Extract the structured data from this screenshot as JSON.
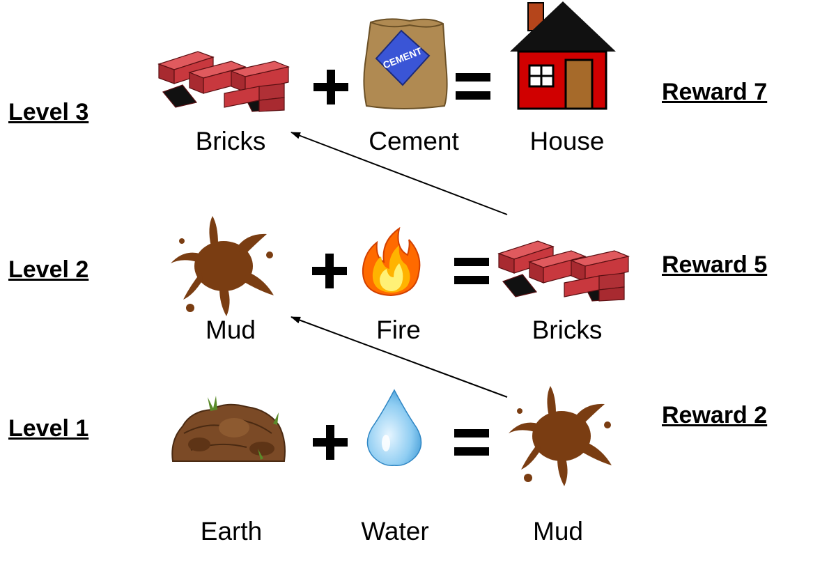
{
  "levels": [
    {
      "label": "Level 3",
      "reward": "Reward 7",
      "inputs": [
        {
          "caption": "Bricks",
          "icon": "bricks-icon"
        },
        {
          "caption": "Cement",
          "icon": "cement-bag-icon"
        }
      ],
      "output": {
        "caption": "House",
        "icon": "house-icon"
      }
    },
    {
      "label": "Level 2",
      "reward": "Reward 5",
      "inputs": [
        {
          "caption": "Mud",
          "icon": "mud-splat-icon"
        },
        {
          "caption": "Fire",
          "icon": "fire-icon"
        }
      ],
      "output": {
        "caption": "Bricks",
        "icon": "bricks-icon"
      }
    },
    {
      "label": "Level 1",
      "reward": "Reward 2",
      "inputs": [
        {
          "caption": "Earth",
          "icon": "earth-rock-icon"
        },
        {
          "caption": "Water",
          "icon": "water-drop-icon"
        }
      ],
      "output": {
        "caption": "Mud",
        "icon": "mud-splat-icon"
      }
    }
  ],
  "cement_bag_text": "CEMENT",
  "colors": {
    "brick": "#c8383e",
    "mud": "#7a3d12",
    "roof": "#111111",
    "house_wall": "#d00000",
    "water": "#4aa6e0",
    "fire": "#ff7a00"
  },
  "edges": [
    {
      "from": "level2-output",
      "to": "level3-input1"
    },
    {
      "from": "level1-output",
      "to": "level2-input1"
    }
  ]
}
